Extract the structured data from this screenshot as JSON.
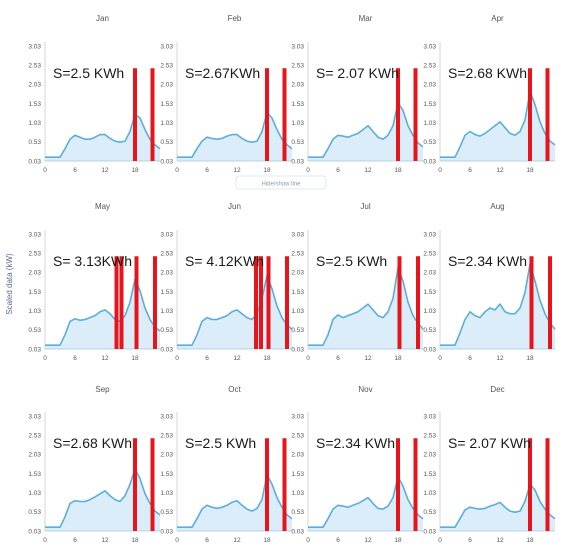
{
  "chart_data": {
    "type": "area",
    "ylabel": "Scaled data (kW)",
    "x_ticks": [
      0,
      6,
      12,
      18
    ],
    "y_ticks": [
      "0.03",
      "0.53",
      "1.03",
      "1.53",
      "2.03",
      "2.53",
      "3.03"
    ],
    "xlim": [
      0,
      23
    ],
    "ylim": [
      0.03,
      3.03
    ],
    "x_hours": [
      0,
      1,
      2,
      3,
      4,
      5,
      6,
      7,
      8,
      9,
      10,
      11,
      12,
      13,
      14,
      15,
      16,
      17,
      18,
      19,
      20,
      21,
      22,
      23
    ],
    "series_color": "#5aaedc",
    "fill_color": "#cfe7f6",
    "marker_color": "#e8141c",
    "marker_top": 2.45,
    "panels": [
      {
        "month": "Jan",
        "energy_label": "S=2.5 KWh",
        "values": [
          0.13,
          0.13,
          0.13,
          0.13,
          0.35,
          0.6,
          0.7,
          0.65,
          0.6,
          0.6,
          0.65,
          0.72,
          0.72,
          0.62,
          0.55,
          0.52,
          0.55,
          0.8,
          1.25,
          1.15,
          0.85,
          0.6,
          0.45,
          0.35
        ],
        "markers": [
          18,
          21.5
        ]
      },
      {
        "month": "Feb",
        "energy_label": "S=2.67KWh",
        "values": [
          0.13,
          0.13,
          0.13,
          0.13,
          0.35,
          0.55,
          0.65,
          0.62,
          0.6,
          0.62,
          0.68,
          0.72,
          0.72,
          0.62,
          0.55,
          0.52,
          0.55,
          0.8,
          1.3,
          1.15,
          0.85,
          0.6,
          0.45,
          0.35
        ],
        "markers": [
          18,
          21.5
        ]
      },
      {
        "month": "Mar",
        "energy_label": "S= 2.07 KWh",
        "values": [
          0.13,
          0.13,
          0.13,
          0.13,
          0.35,
          0.6,
          0.7,
          0.68,
          0.65,
          0.7,
          0.75,
          0.85,
          0.95,
          0.8,
          0.65,
          0.6,
          0.7,
          0.95,
          1.55,
          1.35,
          0.95,
          0.7,
          0.5,
          0.4
        ],
        "markers": [
          18,
          21.5
        ]
      },
      {
        "month": "Apr",
        "energy_label": "S=2.68 KWh",
        "values": [
          0.13,
          0.13,
          0.13,
          0.13,
          0.4,
          0.7,
          0.8,
          0.72,
          0.68,
          0.75,
          0.85,
          0.95,
          1.05,
          0.9,
          0.75,
          0.7,
          0.8,
          1.1,
          1.85,
          1.5,
          1.05,
          0.75,
          0.55,
          0.45
        ],
        "markers": [
          18,
          21.5
        ]
      },
      {
        "month": "May",
        "energy_label": "S= 3.13KWh",
        "values": [
          0.13,
          0.13,
          0.13,
          0.13,
          0.4,
          0.75,
          0.82,
          0.78,
          0.8,
          0.85,
          0.9,
          1.0,
          1.05,
          0.95,
          0.8,
          0.75,
          0.9,
          1.25,
          1.85,
          1.55,
          1.1,
          0.8,
          0.6,
          0.5
        ],
        "markers": [
          14.3,
          15.3,
          18.3,
          22
        ]
      },
      {
        "month": "Jun",
        "energy_label": "S= 4.12KWh",
        "values": [
          0.13,
          0.13,
          0.13,
          0.13,
          0.4,
          0.75,
          0.85,
          0.8,
          0.8,
          0.85,
          0.9,
          1.0,
          1.05,
          0.95,
          0.85,
          0.8,
          0.95,
          1.35,
          1.95,
          1.6,
          1.15,
          0.85,
          0.65,
          0.55
        ],
        "markers": [
          15.8,
          16.8,
          18.3,
          22
        ]
      },
      {
        "month": "Jul",
        "energy_label": "S=2.5 KWh",
        "values": [
          0.13,
          0.13,
          0.13,
          0.13,
          0.4,
          0.8,
          0.92,
          0.85,
          0.9,
          0.95,
          1.0,
          1.1,
          1.2,
          1.05,
          0.9,
          0.85,
          1.0,
          1.35,
          2.15,
          1.8,
          1.25,
          0.9,
          0.7,
          0.55
        ],
        "markers": [
          18.3,
          22
        ]
      },
      {
        "month": "Aug",
        "energy_label": "S=2.34 KWh",
        "values": [
          0.13,
          0.13,
          0.13,
          0.13,
          0.45,
          0.8,
          1.0,
          0.9,
          0.85,
          1.0,
          1.1,
          1.05,
          1.2,
          1.0,
          0.95,
          0.95,
          1.1,
          1.5,
          2.25,
          1.8,
          1.3,
          0.95,
          0.7,
          0.55
        ],
        "markers": [
          18.3,
          22
        ]
      },
      {
        "month": "Sep",
        "energy_label": "S=2.68 KWh",
        "values": [
          0.13,
          0.13,
          0.13,
          0.13,
          0.4,
          0.75,
          0.82,
          0.8,
          0.8,
          0.85,
          0.92,
          1.0,
          1.08,
          0.95,
          0.85,
          0.8,
          0.95,
          1.25,
          1.65,
          1.4,
          1.0,
          0.75,
          0.55,
          0.45
        ],
        "markers": [
          18,
          21.5
        ]
      },
      {
        "month": "Oct",
        "energy_label": "S=2.5 KWh",
        "values": [
          0.13,
          0.13,
          0.13,
          0.13,
          0.35,
          0.6,
          0.7,
          0.65,
          0.62,
          0.65,
          0.7,
          0.78,
          0.82,
          0.7,
          0.6,
          0.55,
          0.62,
          0.85,
          1.5,
          1.25,
          0.9,
          0.65,
          0.45,
          0.35
        ],
        "markers": [
          18,
          21.5
        ]
      },
      {
        "month": "Nov",
        "energy_label": "S=2.34 KWh",
        "values": [
          0.13,
          0.13,
          0.13,
          0.13,
          0.35,
          0.6,
          0.7,
          0.68,
          0.65,
          0.7,
          0.75,
          0.82,
          0.9,
          0.75,
          0.62,
          0.6,
          0.68,
          0.9,
          1.45,
          1.2,
          0.85,
          0.62,
          0.45,
          0.35
        ],
        "markers": [
          18,
          21.5
        ]
      },
      {
        "month": "Dec",
        "energy_label": "S= 2.07 KWh",
        "values": [
          0.13,
          0.13,
          0.13,
          0.13,
          0.35,
          0.58,
          0.65,
          0.62,
          0.6,
          0.62,
          0.68,
          0.72,
          0.78,
          0.65,
          0.55,
          0.52,
          0.55,
          0.8,
          1.25,
          1.1,
          0.8,
          0.6,
          0.45,
          0.35
        ],
        "markers": [
          18,
          21.5
        ]
      }
    ]
  },
  "overlay": {
    "badge_text": "Hide/show line"
  }
}
